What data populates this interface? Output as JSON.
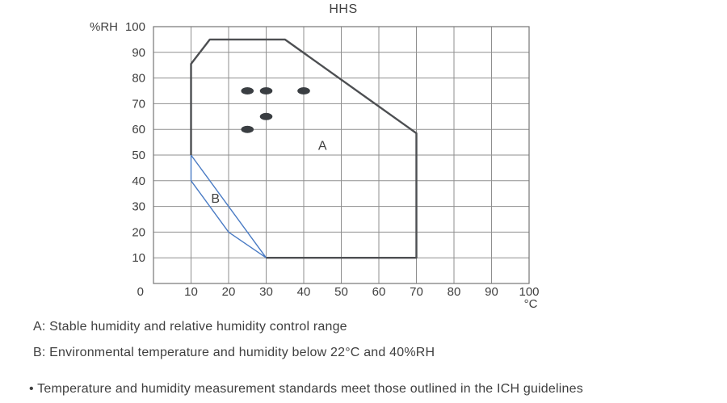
{
  "chart_data": {
    "type": "line",
    "title": "HHS",
    "x_axis": {
      "unit": "°C",
      "range": [
        0,
        100
      ],
      "ticks": [
        0,
        10,
        20,
        30,
        40,
        50,
        60,
        70,
        80,
        90,
        100
      ]
    },
    "y_axis": {
      "unit": "%RH",
      "range": [
        0,
        100
      ],
      "ticks": [
        10,
        20,
        30,
        40,
        50,
        60,
        70,
        80,
        90,
        100
      ]
    },
    "grid": true,
    "legend_position": "none",
    "region_a": {
      "label": "A",
      "label_pos": [
        45,
        52
      ],
      "color": "#4d4f52",
      "outline_points": [
        [
          10,
          50
        ],
        [
          10,
          85.5
        ],
        [
          15,
          95
        ],
        [
          35,
          95
        ],
        [
          70,
          58.5
        ],
        [
          70,
          10
        ],
        [
          30,
          10
        ]
      ]
    },
    "region_b": {
      "label": "B",
      "label_pos": [
        16.5,
        31.5
      ],
      "color": "#4a7bc4",
      "polygon_points": [
        [
          10,
          50
        ],
        [
          30,
          10
        ],
        [
          20,
          20
        ],
        [
          10,
          40
        ]
      ]
    },
    "data_points": {
      "color": "#3a3e42",
      "coords": [
        [
          25,
          75
        ],
        [
          30,
          75
        ],
        [
          40,
          75
        ],
        [
          30,
          65
        ],
        [
          25,
          60
        ]
      ]
    }
  },
  "notes": {
    "a": "A: Stable humidity and relative humidity control range",
    "b": "B: Environmental temperature and humidity below 22°C and 40%RH",
    "bullet": "• Temperature and humidity measurement standards meet those outlined in the ICH guidelines"
  },
  "colors": {
    "text": "#3f3f3f",
    "grid": "#8f8f8f",
    "frame": "#757575"
  }
}
